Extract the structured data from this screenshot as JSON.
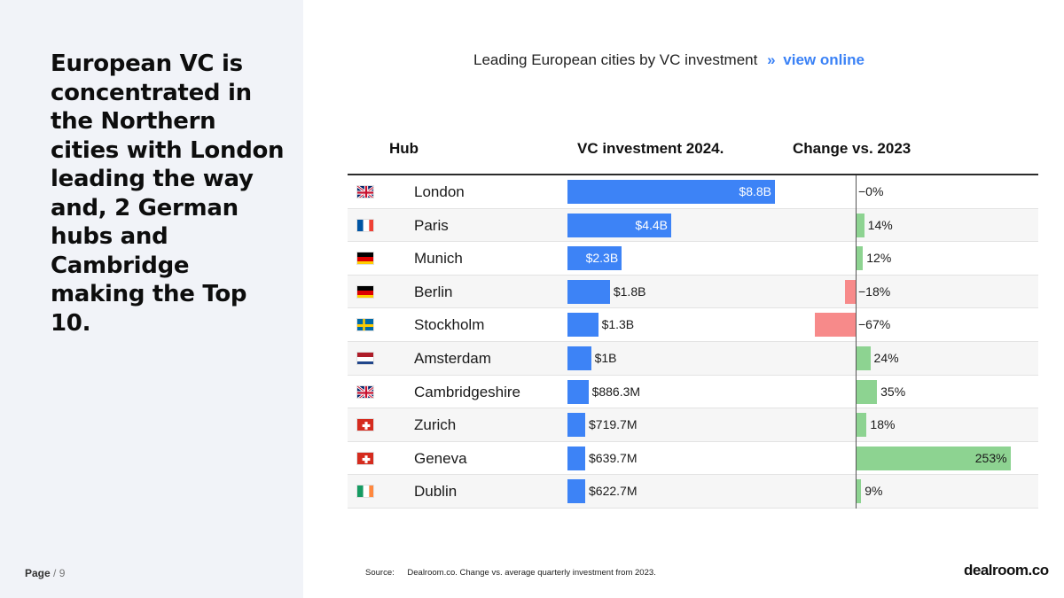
{
  "headline": "European VC is concentrated in the Northern cities with London leading the way and, 2 German hubs and Cambridge making the Top 10.",
  "page": {
    "label": "Page",
    "separator": "/",
    "number": "9"
  },
  "chart_title": {
    "text": "Leading European cities by VC investment",
    "arrow": "»",
    "link": "view online"
  },
  "source": {
    "label": "Source:",
    "text": "Dealroom.co. Change vs. average quarterly investment from 2023."
  },
  "brand": "dealroom.co",
  "colors": {
    "bar": "#3d83f6",
    "positive": "#8dd391",
    "negative": "#f78a8a",
    "accent": "#3b82f6"
  },
  "chart_data": {
    "type": "table",
    "title": "Leading European cities by VC investment",
    "columns": [
      "Hub",
      "VC investment 2024.",
      "Change vs. 2023"
    ],
    "investment_unit": "USD billions",
    "rows": [
      {
        "flag": "gb",
        "hub": "London",
        "investment": 8.8,
        "investment_label": "$8.8B",
        "change": 0,
        "change_label": "−0%"
      },
      {
        "flag": "fr",
        "hub": "Paris",
        "investment": 4.4,
        "investment_label": "$4.4B",
        "change": 14,
        "change_label": "14%"
      },
      {
        "flag": "de",
        "hub": "Munich",
        "investment": 2.3,
        "investment_label": "$2.3B",
        "change": 12,
        "change_label": "12%"
      },
      {
        "flag": "de",
        "hub": "Berlin",
        "investment": 1.8,
        "investment_label": "$1.8B",
        "change": -18,
        "change_label": "−18%"
      },
      {
        "flag": "se",
        "hub": "Stockholm",
        "investment": 1.3,
        "investment_label": "$1.3B",
        "change": -67,
        "change_label": "−67%"
      },
      {
        "flag": "nl",
        "hub": "Amsterdam",
        "investment": 1.0,
        "investment_label": "$1B",
        "change": 24,
        "change_label": "24%"
      },
      {
        "flag": "gb",
        "hub": "Cambridgeshire",
        "investment": 0.8863,
        "investment_label": "$886.3M",
        "change": 35,
        "change_label": "35%"
      },
      {
        "flag": "ch",
        "hub": "Zurich",
        "investment": 0.7197,
        "investment_label": "$719.7M",
        "change": 18,
        "change_label": "18%"
      },
      {
        "flag": "ch",
        "hub": "Geneva",
        "investment": 0.6397,
        "investment_label": "$639.7M",
        "change": 253,
        "change_label": "253%"
      },
      {
        "flag": "ie",
        "hub": "Dublin",
        "investment": 0.6227,
        "investment_label": "$622.7M",
        "change": 9,
        "change_label": "9%"
      }
    ]
  }
}
